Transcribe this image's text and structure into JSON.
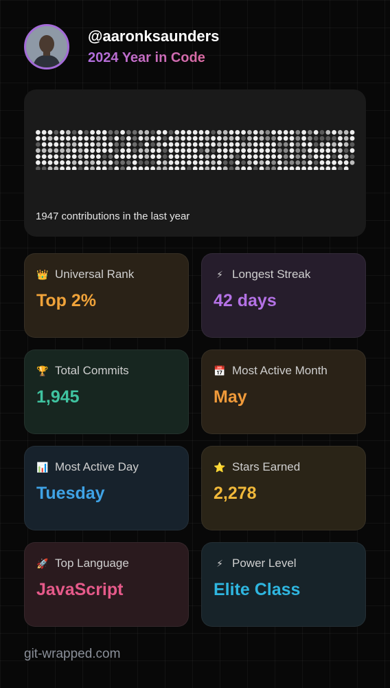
{
  "profile": {
    "username": "@aaronksaunders",
    "subtitle": "2024 Year in Code"
  },
  "contributions": {
    "summary": "1947 contributions in the last year"
  },
  "stats": [
    {
      "label": "Universal Rank",
      "value": "Top 2%",
      "icon": "crown-icon",
      "glyph": "👑",
      "accent": "#f0a33a",
      "bg": "#2a2217"
    },
    {
      "label": "Longest Streak",
      "value": "42 days",
      "icon": "lightning-icon",
      "glyph": "⚡",
      "accent": "#b472e6",
      "bg": "#261d2c"
    },
    {
      "label": "Total Commits",
      "value": "1,945",
      "icon": "trophy-icon",
      "glyph": "🏆",
      "accent": "#3fc3a0",
      "bg": "#172620"
    },
    {
      "label": "Most Active Month",
      "value": "May",
      "icon": "calendar-icon",
      "glyph": "📅",
      "accent": "#f09a3a",
      "bg": "#2a2217"
    },
    {
      "label": "Most Active Day",
      "value": "Tuesday",
      "icon": "bar-chart-icon",
      "glyph": "📊",
      "accent": "#3fa3e6",
      "bg": "#17222c"
    },
    {
      "label": "Stars Earned",
      "value": "2,278",
      "icon": "star-icon",
      "glyph": "⭐",
      "accent": "#f0b83a",
      "bg": "#2a2417"
    },
    {
      "label": "Top Language",
      "value": "JavaScript",
      "icon": "rocket-icon",
      "glyph": "🚀",
      "accent": "#e65a8a",
      "bg": "#2a1a1e"
    },
    {
      "label": "Power Level",
      "value": "Elite Class",
      "icon": "lightning-icon",
      "glyph": "⚡",
      "accent": "#2fb6e0",
      "bg": "#172329"
    }
  ],
  "footer": {
    "site": "git-wrapped.com"
  }
}
